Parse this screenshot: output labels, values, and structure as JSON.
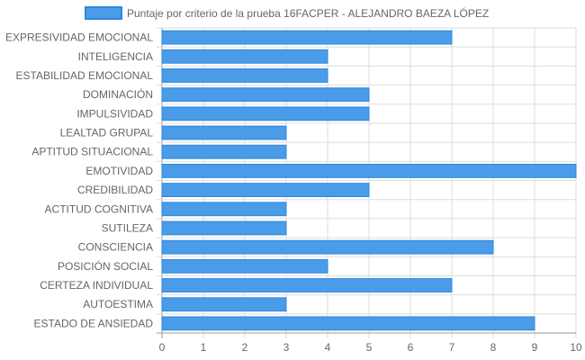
{
  "chart_data": {
    "type": "bar",
    "orientation": "horizontal",
    "categories": [
      "EXPRESIVIDAD EMOCIONAL",
      "INTELIGENCIA",
      "ESTABILIDAD EMOCIONAL",
      "DOMINACIÓN",
      "IMPULSIVIDAD",
      "LEALTAD GRUPAL",
      "APTITUD SITUACIONAL",
      "EMOTIVIDAD",
      "CREDIBILIDAD",
      "ACTITUD COGNITIVA",
      "SUTILEZA",
      "CONSCIENCIA",
      "POSICIÓN SOCIAL",
      "CERTEZA INDIVIDUAL",
      "AUTOESTIMA",
      "ESTADO DE ANSIEDAD"
    ],
    "series": [
      {
        "name": "Puntaje por criterio de la prueba 16FACPER - ALEJANDRO BAEZA LÓPEZ",
        "values": [
          7,
          4,
          4,
          5,
          5,
          3,
          3,
          10,
          5,
          3,
          3,
          8,
          4,
          7,
          3,
          9
        ]
      }
    ],
    "xlim": [
      0,
      10
    ],
    "xticks": [
      "0",
      "1",
      "2",
      "3",
      "4",
      "5",
      "6",
      "7",
      "8",
      "9",
      "10"
    ],
    "grid": true,
    "legend_position": "top",
    "colors": {
      "bar_fill": "#4a9ce8",
      "bar_stroke": "#2f86dc",
      "grid": "#dddddd",
      "text": "#666666"
    }
  }
}
